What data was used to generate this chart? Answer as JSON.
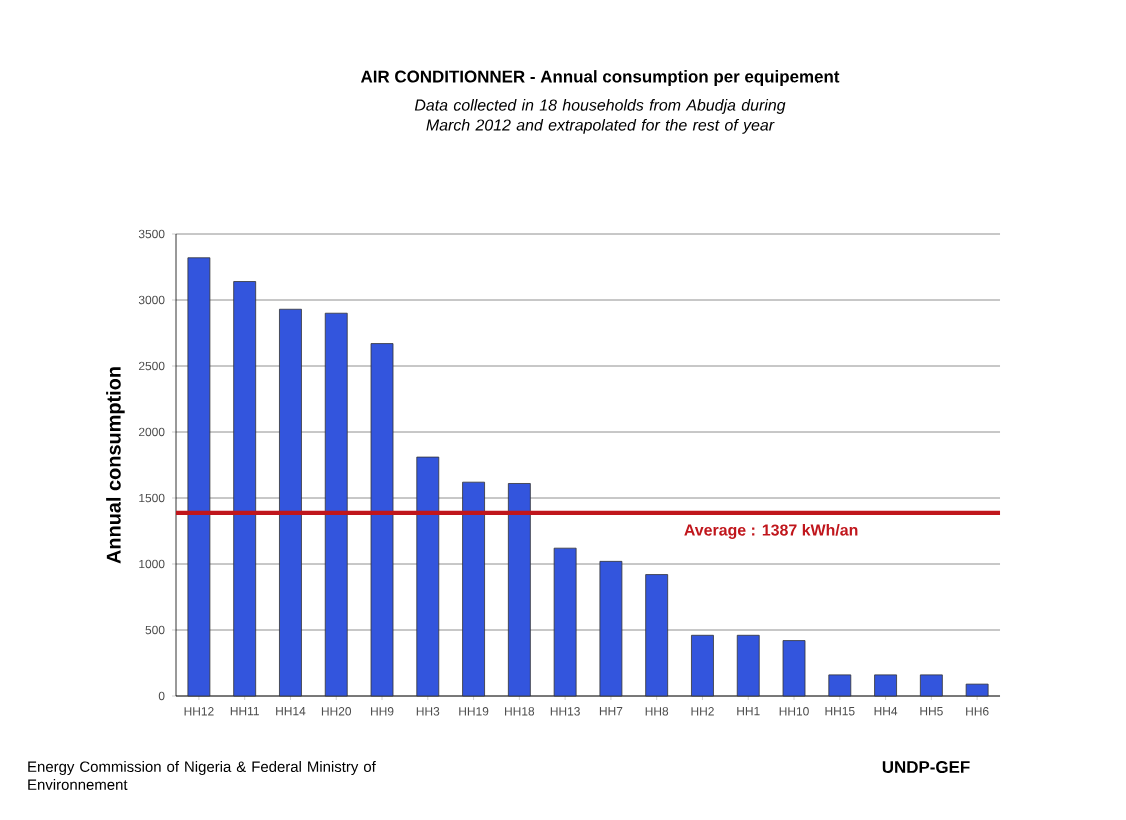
{
  "chart_data": {
    "type": "bar",
    "title": "AIR CONDITIONNER - Annual consumption per equipement",
    "subtitle": "Data collected in 18 households  from Abudja during March 2012 and extrapolated for the rest of year",
    "ylabel": "Annual consumption",
    "categories": [
      "HH12",
      "HH11",
      "HH14",
      "HH20",
      "HH9",
      "HH3",
      "HH19",
      "HH18",
      "HH13",
      "HH7",
      "HH8",
      "HH2",
      "HH1",
      "HH10",
      "HH15",
      "HH4",
      "HH5",
      "HH6"
    ],
    "values": [
      3320,
      3140,
      2930,
      2900,
      2670,
      1810,
      1620,
      1610,
      1120,
      1020,
      920,
      460,
      460,
      420,
      160,
      160,
      160,
      90
    ],
    "color": "#3355dd",
    "ylim": [
      0,
      3500
    ],
    "yticks": [
      0,
      500,
      1000,
      1500,
      2000,
      2500,
      3000,
      3500
    ],
    "grid": "y",
    "ref_lines": [
      {
        "axis": "y",
        "value": 1387,
        "label": "Average :  1387 kWh/an",
        "color": "#c0161c"
      }
    ],
    "annotations": [
      "Energy Commission of Nigeria & Federal Ministry of Environnement",
      "UNDP-GEF"
    ]
  }
}
